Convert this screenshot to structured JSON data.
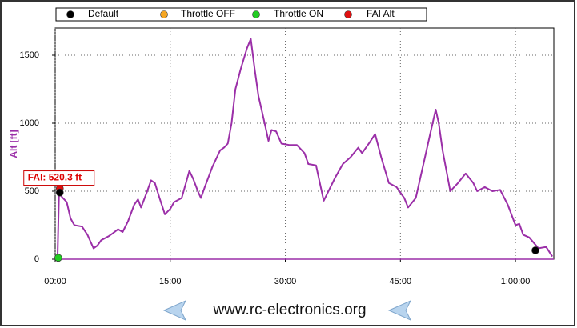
{
  "chart_data": {
    "type": "line",
    "y_label": "Alt [ft]",
    "annotation": "FAI: 520.3 ft",
    "footer": "www.rc-electronics.org",
    "xlim": [
      0,
      65
    ],
    "xticks": [
      {
        "value": 0,
        "label": "00:00"
      },
      {
        "value": 15,
        "label": "15:00"
      },
      {
        "value": 30,
        "label": "30:00"
      },
      {
        "value": 45,
        "label": "45:00"
      },
      {
        "value": 60,
        "label": "1:00:00"
      }
    ],
    "ylim": [
      0,
      1700
    ],
    "yticks": [
      0,
      500,
      1000,
      1500
    ],
    "grid": true,
    "line": {
      "color": "#9b2fa8",
      "x": [
        0,
        0.3,
        0.5,
        0.7,
        1.0,
        1.5,
        2.0,
        2.5,
        3.5,
        4.2,
        5.0,
        5.5,
        6.0,
        7.0,
        7.5,
        8.2,
        8.8,
        9.5,
        10.3,
        10.8,
        11.2,
        12.0,
        12.5,
        13.0,
        13.6,
        14.3,
        15.0,
        15.5,
        16.5,
        17.0,
        17.5,
        18.0,
        18.6,
        19.0,
        19.5,
        20.5,
        21.5,
        22.0,
        22.5,
        23.0,
        23.5,
        24.2,
        25.0,
        25.5,
        26.0,
        26.5,
        27.3,
        27.8,
        28.2,
        28.8,
        29.5,
        30.5,
        31.5,
        32.5,
        33.0,
        34.0,
        35.0,
        35.8,
        36.5,
        37.5,
        38.5,
        39.5,
        40.0,
        41.0,
        41.7,
        42.5,
        43.5,
        44.5,
        45.5,
        46.0,
        47.0,
        48.0,
        49.0,
        49.6,
        50.0,
        50.5,
        51.5,
        52.5,
        53.5,
        54.5,
        55.0,
        56.0,
        57.0,
        58.0,
        59.0,
        60.0,
        60.5,
        61.0,
        61.8,
        63.0,
        64.0,
        64.8
      ],
      "values": [
        0,
        0,
        490,
        470,
        450,
        420,
        300,
        250,
        240,
        180,
        80,
        100,
        140,
        170,
        190,
        220,
        200,
        280,
        400,
        440,
        380,
        500,
        580,
        560,
        450,
        330,
        370,
        420,
        450,
        550,
        650,
        590,
        500,
        450,
        530,
        680,
        800,
        820,
        850,
        1000,
        1250,
        1400,
        1550,
        1620,
        1400,
        1200,
        1000,
        870,
        950,
        940,
        850,
        840,
        840,
        780,
        700,
        690,
        430,
        520,
        600,
        700,
        750,
        820,
        780,
        860,
        920,
        750,
        560,
        530,
        450,
        380,
        450,
        700,
        950,
        1100,
        1000,
        800,
        500,
        560,
        630,
        560,
        500,
        530,
        500,
        510,
        400,
        250,
        260,
        180,
        160,
        80,
        90,
        20
      ]
    },
    "series": [
      {
        "name": "Default",
        "color": "#000000",
        "x": [
          0.6,
          62.6
        ],
        "values": [
          490,
          65
        ]
      },
      {
        "name": "Throttle OFF",
        "color": "#f5a623",
        "x": [],
        "values": []
      },
      {
        "name": "Throttle ON",
        "color": "#22cc22",
        "x": [
          0.4
        ],
        "values": [
          10
        ]
      },
      {
        "name": "FAI Alt",
        "color": "#e01010",
        "x": [
          0.6
        ],
        "values": [
          520.3
        ]
      }
    ]
  }
}
